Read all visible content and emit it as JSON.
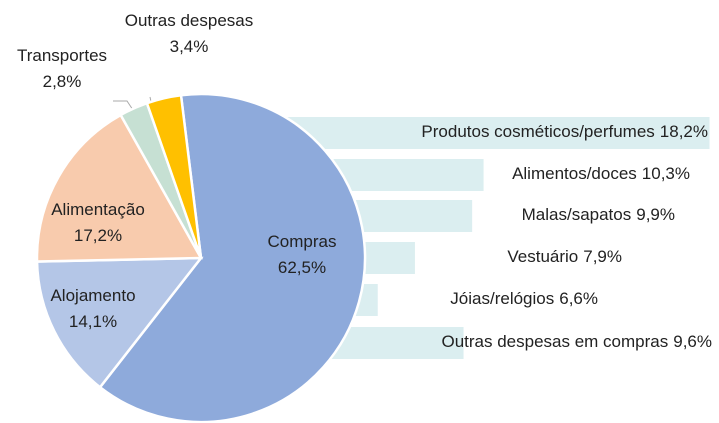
{
  "chart_data": [
    {
      "type": "pie",
      "categories": [
        "Compras",
        "Alojamento",
        "Alimentação",
        "Transportes",
        "Outras despesas"
      ],
      "values": [
        62.5,
        14.1,
        17.2,
        2.8,
        3.4
      ],
      "value_labels": [
        "62,5%",
        "14,1%",
        "17,2%",
        "2,8%",
        "3,4%"
      ],
      "colors": [
        "#8eaadb",
        "#b4c6e7",
        "#f8cbad",
        "#c6e0d3",
        "#ffc000"
      ]
    },
    {
      "type": "barh",
      "categories": [
        "Produtos cosméticos/perfumes",
        "Alimentos/doces",
        "Malas/sapatos",
        "Vestuário",
        "Jóias/relógios",
        "Outras despesas em compras"
      ],
      "values": [
        18.2,
        10.3,
        9.9,
        7.9,
        6.6,
        9.6
      ],
      "value_labels": [
        "18,2%",
        "10,3%",
        "9,9%",
        "7,9%",
        "6,6%",
        "9,6%"
      ],
      "color": "#dbeef0"
    }
  ]
}
